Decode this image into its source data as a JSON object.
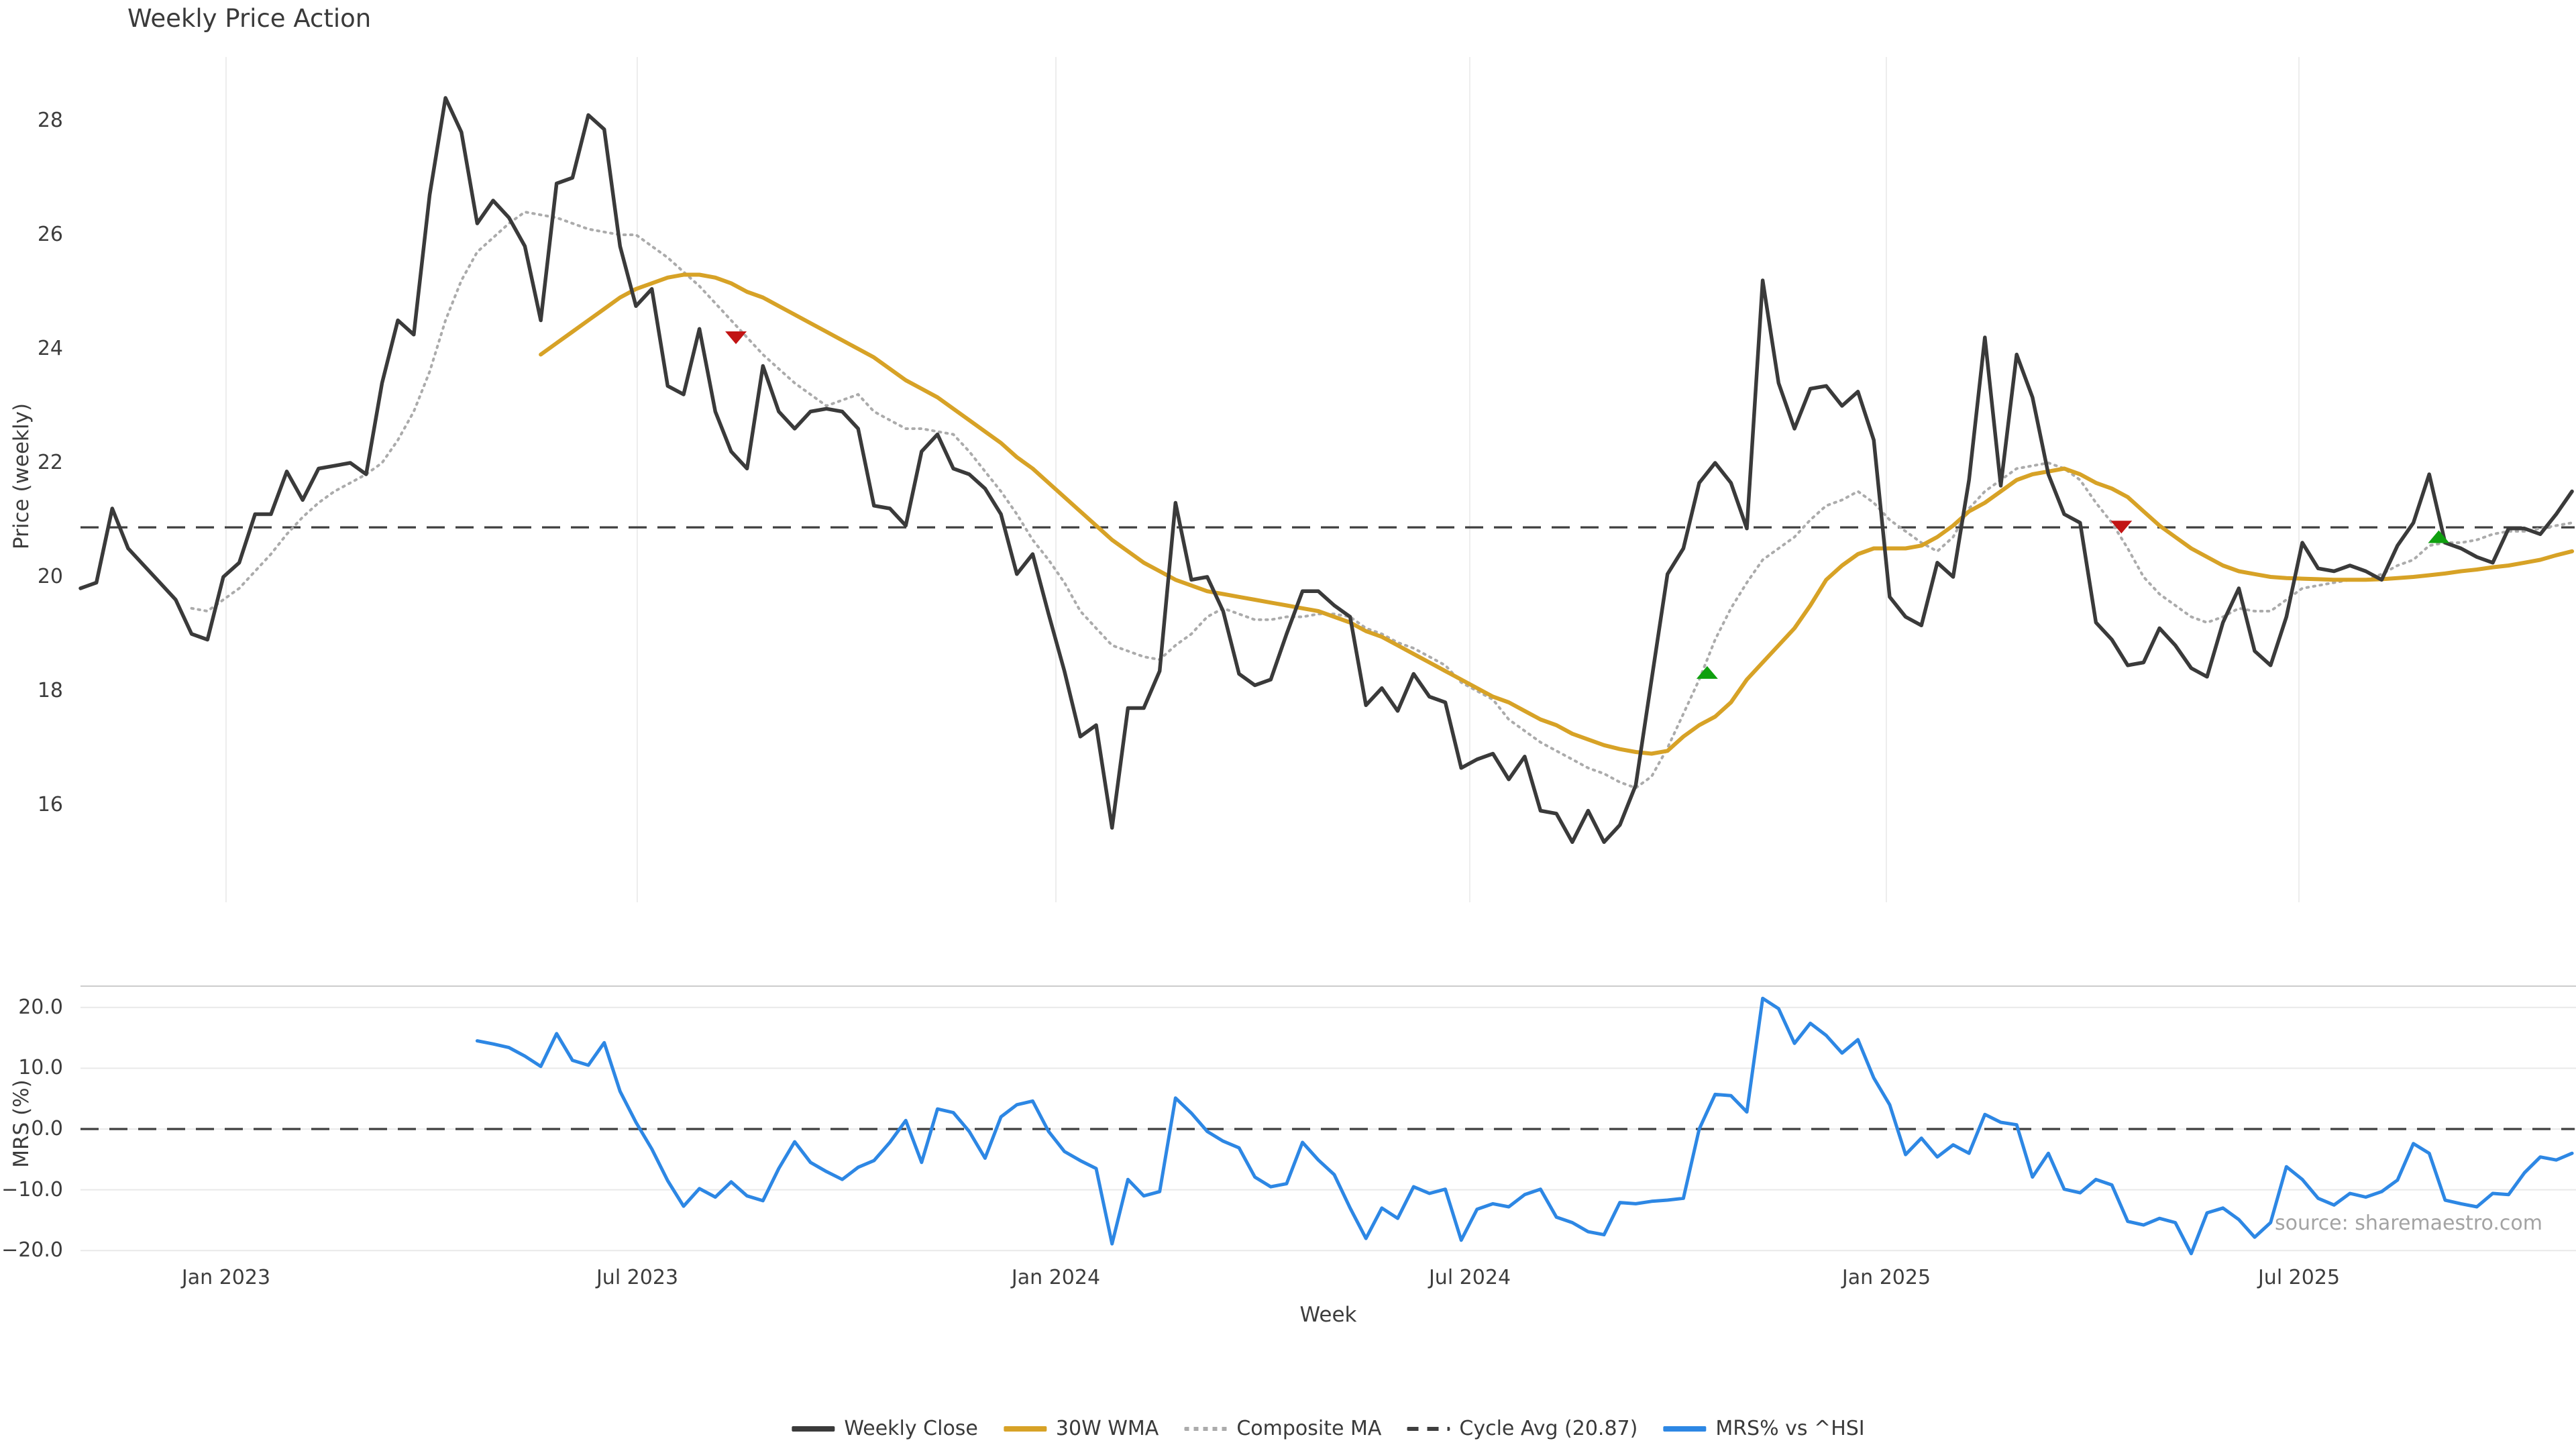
{
  "source_note": "source: sharemaestro.com",
  "legend": {
    "items": [
      {
        "label": "Weekly Close",
        "color": "#3a3a3a",
        "style": "solid"
      },
      {
        "label": "30W WMA",
        "color": "#d7a226",
        "style": "solid"
      },
      {
        "label": "Composite MA",
        "color": "#ababab",
        "style": "dotted"
      },
      {
        "label": "Cycle Avg (20.87)",
        "color": "#3f3f3f",
        "style": "dashed"
      },
      {
        "label": "MRS% vs ^HSI",
        "color": "#2d87e4",
        "style": "solid"
      }
    ]
  },
  "chart_data": {
    "type": "line",
    "title": "Weekly Price Action",
    "xlabel": "Week",
    "x_unit": "weeks since late Oct 2022, weekly data",
    "x_tick_labels": [
      "Jan 2023",
      "Jul 2023",
      "Jan 2024",
      "Jul 2024",
      "Jan 2025",
      "Jul 2025"
    ],
    "x_tick_weeks": [
      9.17,
      35.08,
      61.46,
      87.54,
      113.79,
      139.79
    ],
    "grid": {
      "top_panel": "vertical-only",
      "bottom_panel": "horizontal-only"
    },
    "panels": [
      {
        "ylabel": "Price (weekly)",
        "ylim": [
          14.3,
          29.12
        ],
        "y_ticks": [
          28,
          26,
          24,
          22,
          20,
          18,
          16
        ],
        "cycle_avg": 20.87,
        "series": [
          {
            "name": "Weekly Close",
            "color": "#3a3a3a",
            "style": "solid",
            "start_week": 0,
            "values": [
              19.8,
              19.9,
              21.2,
              20.5,
              20.2,
              19.9,
              19.6,
              19.0,
              18.9,
              20.0,
              20.25,
              21.1,
              21.1,
              21.85,
              21.35,
              21.9,
              21.95,
              22.0,
              21.8,
              23.4,
              24.5,
              24.25,
              26.7,
              28.4,
              27.8,
              26.2,
              26.6,
              26.3,
              25.8,
              24.5,
              26.9,
              27.0,
              28.1,
              27.85,
              25.8,
              24.75,
              25.05,
              23.35,
              23.2,
              24.35,
              22.9,
              22.2,
              21.9,
              23.7,
              22.9,
              22.6,
              22.9,
              22.95,
              22.9,
              22.6,
              21.25,
              21.2,
              20.9,
              22.2,
              22.5,
              21.9,
              21.8,
              21.55,
              21.1,
              20.05,
              20.4,
              19.35,
              18.35,
              17.2,
              17.4,
              15.6,
              17.7,
              17.7,
              18.35,
              21.3,
              19.95,
              20.0,
              19.4,
              18.3,
              18.1,
              18.2,
              19.0,
              19.75,
              19.75,
              19.5,
              19.3,
              17.75,
              18.05,
              17.65,
              18.3,
              17.9,
              17.8,
              16.65,
              16.8,
              16.9,
              16.45,
              16.85,
              15.9,
              15.85,
              15.35,
              15.9,
              15.35,
              15.65,
              16.35,
              18.2,
              20.05,
              20.5,
              21.65,
              22.0,
              21.65,
              20.85,
              25.2,
              23.4,
              22.6,
              23.3,
              23.35,
              23.0,
              23.25,
              22.4,
              19.65,
              19.3,
              19.15,
              20.25,
              20.0,
              21.7,
              24.2,
              21.6,
              23.9,
              23.15,
              21.8,
              21.1,
              20.95,
              19.2,
              18.9,
              18.45,
              18.5,
              19.1,
              18.8,
              18.4,
              18.25,
              19.2,
              19.8,
              18.7,
              18.45,
              19.3,
              20.6,
              20.15,
              20.1,
              20.2,
              20.1,
              19.95,
              20.55,
              20.95,
              21.8,
              20.6,
              20.5,
              20.35,
              20.25,
              20.85,
              20.85,
              20.75,
              21.1,
              21.5
            ]
          },
          {
            "name": "30W WMA",
            "color": "#d7a226",
            "style": "solid",
            "start_week": 29,
            "values": [
              23.9,
              24.1,
              24.3,
              24.5,
              24.7,
              24.9,
              25.05,
              25.15,
              25.25,
              25.3,
              25.3,
              25.25,
              25.15,
              25.0,
              24.9,
              24.75,
              24.6,
              24.45,
              24.3,
              24.15,
              24.0,
              23.85,
              23.65,
              23.45,
              23.3,
              23.15,
              22.95,
              22.75,
              22.55,
              22.35,
              22.1,
              21.9,
              21.65,
              21.4,
              21.15,
              20.9,
              20.65,
              20.45,
              20.25,
              20.1,
              19.95,
              19.85,
              19.75,
              19.7,
              19.65,
              19.6,
              19.55,
              19.5,
              19.45,
              19.4,
              19.3,
              19.2,
              19.05,
              18.95,
              18.8,
              18.65,
              18.5,
              18.35,
              18.2,
              18.05,
              17.9,
              17.8,
              17.65,
              17.5,
              17.4,
              17.25,
              17.15,
              17.05,
              16.98,
              16.93,
              16.9,
              16.95,
              17.2,
              17.4,
              17.55,
              17.8,
              18.2,
              18.5,
              18.8,
              19.1,
              19.5,
              19.95,
              20.2,
              20.4,
              20.5,
              20.5,
              20.5,
              20.55,
              20.7,
              20.9,
              21.15,
              21.3,
              21.5,
              21.7,
              21.8,
              21.85,
              21.9,
              21.8,
              21.65,
              21.55,
              21.4,
              21.15,
              20.9,
              20.7,
              20.5,
              20.35,
              20.2,
              20.1,
              20.05,
              20.0,
              19.98,
              19.97,
              19.96,
              19.95,
              19.95,
              19.95,
              19.96,
              19.98,
              20.0,
              20.03,
              20.06,
              20.1,
              20.13,
              20.17,
              20.2,
              20.25,
              20.3,
              20.38,
              20.45
            ]
          },
          {
            "name": "Composite MA",
            "color": "#ababab",
            "style": "dotted",
            "start_week": 7,
            "values": [
              19.45,
              19.4,
              19.6,
              19.8,
              20.1,
              20.4,
              20.75,
              21.05,
              21.3,
              21.5,
              21.65,
              21.8,
              22.0,
              22.4,
              22.9,
              23.6,
              24.5,
              25.2,
              25.7,
              25.95,
              26.2,
              26.4,
              26.35,
              26.3,
              26.2,
              26.1,
              26.05,
              26.0,
              26.0,
              25.8,
              25.6,
              25.35,
              25.1,
              24.8,
              24.5,
              24.2,
              23.9,
              23.65,
              23.4,
              23.2,
              23.0,
              23.1,
              23.2,
              22.9,
              22.75,
              22.6,
              22.6,
              22.55,
              22.5,
              22.2,
              21.85,
              21.5,
              21.1,
              20.65,
              20.3,
              19.9,
              19.4,
              19.1,
              18.8,
              18.7,
              18.6,
              18.55,
              18.8,
              19.0,
              19.3,
              19.45,
              19.35,
              19.25,
              19.25,
              19.3,
              19.3,
              19.35,
              19.35,
              19.3,
              19.1,
              19.0,
              18.85,
              18.75,
              18.6,
              18.45,
              18.15,
              18.0,
              17.85,
              17.5,
              17.3,
              17.1,
              16.95,
              16.8,
              16.65,
              16.55,
              16.4,
              16.3,
              16.5,
              17.0,
              17.6,
              18.2,
              18.9,
              19.45,
              19.9,
              20.3,
              20.5,
              20.7,
              21.0,
              21.25,
              21.35,
              21.5,
              21.3,
              21.0,
              20.8,
              20.6,
              20.45,
              20.7,
              21.2,
              21.5,
              21.7,
              21.9,
              21.95,
              22.0,
              21.9,
              21.7,
              21.3,
              20.95,
              20.5,
              20.0,
              19.7,
              19.5,
              19.3,
              19.2,
              19.3,
              19.45,
              19.4,
              19.4,
              19.6,
              19.8,
              19.85,
              19.9,
              19.95,
              19.95,
              20.05,
              20.2,
              20.3,
              20.55,
              20.6,
              20.6,
              20.65,
              20.75,
              20.8,
              20.8,
              20.85,
              20.9,
              20.95
            ]
          },
          {
            "name": "Cycle Avg (20.87)",
            "color": "#3f3f3f",
            "style": "dashed",
            "kind": "hline",
            "value": 20.87
          }
        ],
        "markers": {
          "sell": [
            {
              "week": 41.3,
              "price": 24.2
            },
            {
              "week": 128.6,
              "price": 20.88
            }
          ],
          "buy": [
            {
              "week": 102.5,
              "price": 18.32
            },
            {
              "week": 148.6,
              "price": 20.7
            }
          ],
          "sell_color": "#c21414",
          "buy_color": "#0fa00f"
        }
      },
      {
        "ylabel": "MRS (%)",
        "ylim": [
          -21.7,
          23.5
        ],
        "y_ticks": [
          20,
          10,
          0,
          -10,
          -20
        ],
        "y_tick_labels": [
          "20.0",
          "10.0",
          "0.0",
          "−10.0",
          "−20.0"
        ],
        "zero_line": {
          "style": "dashed",
          "color": "#3f3f3f"
        },
        "series": [
          {
            "name": "MRS% vs ^HSI",
            "color": "#2d87e4",
            "style": "solid",
            "start_week": 25,
            "values": [
              14.5,
              14.0,
              13.4,
              12.0,
              10.3,
              15.7,
              11.3,
              10.5,
              14.2,
              6.2,
              1.1,
              -3.3,
              -8.5,
              -12.7,
              -9.8,
              -11.2,
              -8.7,
              -11.0,
              -11.8,
              -6.5,
              -2.1,
              -5.5,
              -7.0,
              -8.3,
              -6.3,
              -5.2,
              -2.2,
              1.4,
              -5.5,
              3.3,
              2.7,
              -0.4,
              -4.8,
              2.0,
              4.0,
              4.6,
              -0.4,
              -3.7,
              -5.2,
              -6.5,
              -18.9,
              -8.3,
              -11.0,
              -10.3,
              5.1,
              2.6,
              -0.4,
              -2.0,
              -3.1,
              -7.9,
              -9.5,
              -9.0,
              -2.2,
              -5.1,
              -7.5,
              -13.0,
              -18.0,
              -13.0,
              -14.7,
              -9.5,
              -10.6,
              -9.9,
              -18.3,
              -13.2,
              -12.3,
              -12.8,
              -10.8,
              -9.9,
              -14.5,
              -15.4,
              -16.9,
              -17.4,
              -12.1,
              -12.3,
              -11.9,
              -11.7,
              -11.4,
              0.0,
              5.7,
              5.5,
              2.8,
              21.5,
              19.8,
              14.1,
              17.4,
              15.4,
              12.5,
              14.7,
              8.4,
              4.0,
              -4.2,
              -1.5,
              -4.6,
              -2.6,
              -4.0,
              2.4,
              1.1,
              0.7,
              -7.9,
              -4.0,
              -9.9,
              -10.5,
              -8.3,
              -9.2,
              -15.2,
              -15.8,
              -14.7,
              -15.4,
              -20.5,
              -13.8,
              -13.0,
              -14.9,
              -17.8,
              -15.4,
              -6.2,
              -8.3,
              -11.4,
              -12.5,
              -10.6,
              -11.2,
              -10.3,
              -8.4,
              -2.4,
              -4.0,
              -11.7,
              -12.3,
              -12.8,
              -10.6,
              -10.8,
              -7.2,
              -4.6,
              -5.1,
              -4.0
            ]
          }
        ]
      }
    ]
  }
}
